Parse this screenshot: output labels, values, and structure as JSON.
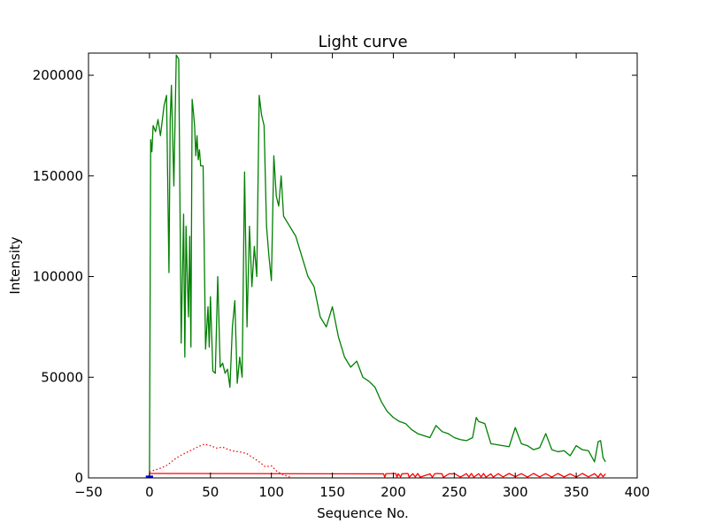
{
  "chart_data": {
    "type": "line",
    "title": "Light curve",
    "xlabel": "Sequence No.",
    "ylabel": "Intensity",
    "xlim": [
      -50,
      400
    ],
    "ylim": [
      0,
      211000
    ],
    "xticks": [
      -50,
      0,
      50,
      100,
      150,
      200,
      250,
      300,
      350,
      400
    ],
    "yticks": [
      0,
      50000,
      100000,
      150000,
      200000
    ],
    "grid": false,
    "legend": "none",
    "series": [
      {
        "color": "#008000",
        "style": "solid",
        "x": [
          0,
          1,
          2,
          3,
          5,
          7,
          9,
          12,
          14,
          16,
          17,
          18,
          20,
          22,
          24,
          26,
          28,
          29,
          30,
          31,
          32,
          33,
          34,
          35,
          36,
          37,
          38,
          39,
          40,
          41,
          42,
          44,
          46,
          48,
          49,
          50,
          52,
          54,
          56,
          58,
          60,
          62,
          64,
          66,
          68,
          70,
          72,
          74,
          76,
          78,
          80,
          82,
          84,
          86,
          88,
          90,
          92,
          94,
          96,
          98,
          100,
          102,
          104,
          106,
          108,
          110,
          115,
          120,
          125,
          130,
          135,
          140,
          145,
          150,
          155,
          160,
          165,
          170,
          175,
          180,
          185,
          190,
          195,
          200,
          205,
          210,
          215,
          220,
          225,
          230,
          235,
          240,
          245,
          250,
          255,
          260,
          265,
          268,
          270,
          275,
          280,
          285,
          290,
          295,
          300,
          305,
          310,
          315,
          320,
          325,
          330,
          335,
          340,
          345,
          350,
          355,
          360,
          365,
          368,
          370,
          372,
          374
        ],
        "y": [
          0,
          168000,
          162000,
          175000,
          172000,
          178000,
          170000,
          185000,
          190000,
          102000,
          178000,
          195000,
          145000,
          210000,
          208000,
          67000,
          131000,
          60000,
          125000,
          100000,
          80000,
          120000,
          65000,
          188000,
          182000,
          175000,
          160000,
          170000,
          158000,
          163000,
          155000,
          155000,
          64000,
          85000,
          65000,
          90000,
          53000,
          52000,
          100000,
          55000,
          57000,
          52000,
          54000,
          45000,
          75000,
          88000,
          47000,
          60000,
          50000,
          152000,
          75000,
          125000,
          95000,
          115000,
          100000,
          190000,
          180000,
          175000,
          125000,
          110000,
          98000,
          160000,
          140000,
          135000,
          150000,
          130000,
          125000,
          120000,
          110000,
          100000,
          95000,
          80000,
          75000,
          85000,
          70000,
          60000,
          55000,
          58000,
          50000,
          48000,
          45000,
          38000,
          33000,
          30000,
          28000,
          27000,
          24000,
          22000,
          21000,
          20000,
          26000,
          23000,
          22000,
          20000,
          19000,
          18500,
          20000,
          30000,
          28000,
          27000,
          17000,
          16500,
          16000,
          15500,
          25000,
          17000,
          16000,
          14000,
          15000,
          22000,
          14000,
          13000,
          13500,
          11000,
          16000,
          14000,
          13500,
          8000,
          18000,
          18500,
          10000,
          8000
        ]
      },
      {
        "color": "#ff0000",
        "style": "dotted",
        "x": [
          0,
          5,
          10,
          15,
          20,
          25,
          30,
          35,
          40,
          45,
          50,
          55,
          60,
          65,
          70,
          75,
          80,
          85,
          90,
          95,
          100,
          105,
          110,
          115
        ],
        "y": [
          3000,
          4000,
          5000,
          6500,
          9000,
          11000,
          12500,
          14000,
          15500,
          16800,
          16000,
          14800,
          15300,
          14000,
          13200,
          12800,
          12000,
          10000,
          8000,
          5500,
          6000,
          3000,
          1500,
          500
        ]
      },
      {
        "color": "#ff0000",
        "style": "solid",
        "x": [
          0,
          192,
          193,
          194,
          202,
          203,
          204,
          206,
          207,
          212,
          213,
          216,
          218,
          220,
          222,
          230,
          232,
          234,
          236,
          240,
          241,
          246,
          248,
          250,
          255,
          260,
          262,
          264,
          266,
          270,
          272,
          274,
          276,
          280,
          282,
          286,
          290,
          295,
          300,
          305,
          310,
          315,
          320,
          325,
          330,
          335,
          340,
          345,
          350,
          355,
          360,
          365,
          368,
          370,
          372,
          374
        ],
        "y": [
          2200,
          2000,
          400,
          2100,
          2200,
          400,
          2100,
          500,
          2000,
          2200,
          400,
          2100,
          500,
          2200,
          400,
          2000,
          400,
          2100,
          2200,
          2000,
          300,
          2100,
          2000,
          2200,
          400,
          2100,
          500,
          2200,
          400,
          2100,
          500,
          2200,
          400,
          2000,
          400,
          2100,
          500,
          2200,
          600,
          2100,
          400,
          2200,
          500,
          2100,
          400,
          2200,
          500,
          2000,
          400,
          2200,
          500,
          2100,
          400,
          2200,
          600,
          2000
        ]
      },
      {
        "color": "#0000ff",
        "style": "solid",
        "x": [
          -3,
          3
        ],
        "y": [
          500,
          500
        ]
      }
    ]
  }
}
